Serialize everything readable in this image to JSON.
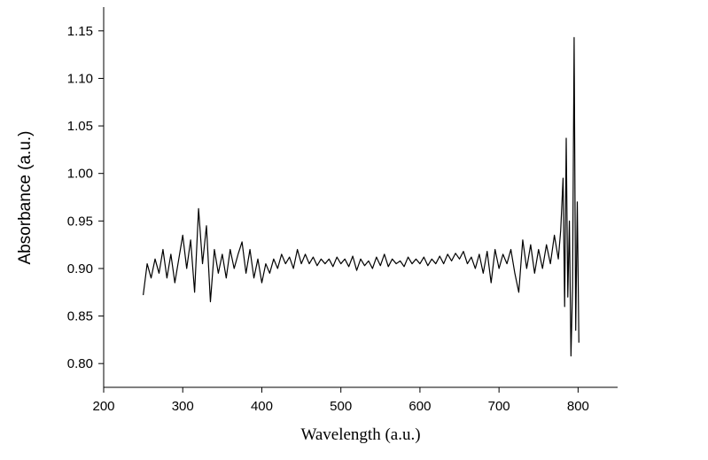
{
  "chart_data": {
    "type": "line",
    "x_label": "Wavelength (a.u.)",
    "y_label": "Absorbance (a.u.)",
    "xlim": [
      200,
      850
    ],
    "ylim": [
      0.775,
      1.175
    ],
    "xticks": [
      200,
      300,
      400,
      500,
      600,
      700,
      800
    ],
    "yticks": [
      {
        "value": 0.8,
        "label": "0.80"
      },
      {
        "value": 0.85,
        "label": "0.85"
      },
      {
        "value": 0.9,
        "label": "0.90"
      },
      {
        "value": 0.95,
        "label": "0.95"
      },
      {
        "value": 1.0,
        "label": "1.00"
      },
      {
        "value": 1.05,
        "label": "1.05"
      },
      {
        "value": 1.1,
        "label": "1.10"
      },
      {
        "value": 1.15,
        "label": "1.15"
      }
    ],
    "grid": false,
    "series": [
      {
        "color": "#000000",
        "x": [
          250,
          255,
          260,
          265,
          270,
          275,
          280,
          285,
          290,
          295,
          300,
          305,
          310,
          315,
          320,
          325,
          330,
          335,
          340,
          345,
          350,
          355,
          360,
          365,
          370,
          375,
          380,
          385,
          390,
          395,
          400,
          405,
          410,
          415,
          420,
          425,
          430,
          435,
          440,
          445,
          450,
          455,
          460,
          465,
          470,
          475,
          480,
          485,
          490,
          495,
          500,
          505,
          510,
          515,
          520,
          525,
          530,
          535,
          540,
          545,
          550,
          555,
          560,
          565,
          570,
          575,
          580,
          585,
          590,
          595,
          600,
          605,
          610,
          615,
          620,
          625,
          630,
          635,
          640,
          645,
          650,
          655,
          660,
          665,
          670,
          675,
          680,
          685,
          690,
          695,
          700,
          705,
          710,
          715,
          720,
          725,
          730,
          735,
          740,
          745,
          750,
          755,
          760,
          765,
          770,
          775,
          778,
          781,
          783,
          785,
          787,
          789,
          791,
          793,
          795,
          797,
          799,
          801
        ],
        "values": [
          0.872,
          0.905,
          0.89,
          0.91,
          0.895,
          0.92,
          0.89,
          0.915,
          0.885,
          0.91,
          0.935,
          0.9,
          0.93,
          0.875,
          0.963,
          0.905,
          0.945,
          0.865,
          0.92,
          0.895,
          0.915,
          0.89,
          0.92,
          0.9,
          0.915,
          0.928,
          0.895,
          0.92,
          0.89,
          0.91,
          0.885,
          0.905,
          0.895,
          0.91,
          0.9,
          0.915,
          0.905,
          0.912,
          0.9,
          0.92,
          0.905,
          0.915,
          0.905,
          0.912,
          0.903,
          0.91,
          0.905,
          0.91,
          0.902,
          0.912,
          0.905,
          0.91,
          0.902,
          0.913,
          0.898,
          0.91,
          0.903,
          0.908,
          0.9,
          0.912,
          0.903,
          0.915,
          0.902,
          0.91,
          0.905,
          0.908,
          0.902,
          0.912,
          0.905,
          0.91,
          0.905,
          0.912,
          0.903,
          0.91,
          0.905,
          0.913,
          0.905,
          0.915,
          0.908,
          0.916,
          0.91,
          0.918,
          0.905,
          0.912,
          0.9,
          0.915,
          0.895,
          0.918,
          0.885,
          0.92,
          0.9,
          0.915,
          0.905,
          0.92,
          0.895,
          0.875,
          0.93,
          0.9,
          0.925,
          0.895,
          0.92,
          0.9,
          0.925,
          0.905,
          0.935,
          0.91,
          0.94,
          0.995,
          0.86,
          1.037,
          0.87,
          0.95,
          0.808,
          0.88,
          1.143,
          0.835,
          0.97,
          0.822
        ]
      }
    ]
  }
}
